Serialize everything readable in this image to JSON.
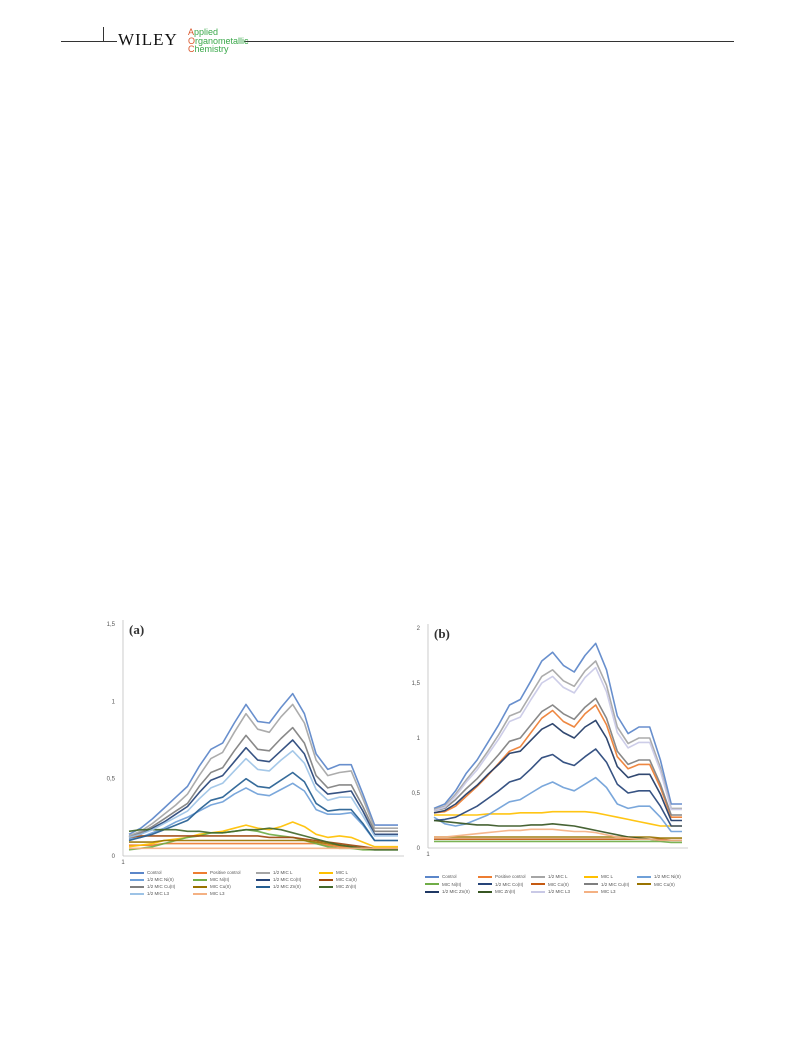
{
  "header": {
    "publisher": "WILEY",
    "journal": {
      "line1": "Applied",
      "line2": "Organometallic",
      "line3": "Chemistry",
      "accent_color": "#d9562b",
      "text_color": "#3aa84a"
    }
  },
  "chart_data": [
    {
      "type": "line",
      "panel_label": "(a)",
      "ylim": [
        0,
        1.5
      ],
      "y_ticks": [
        "0",
        "0,5",
        "1",
        "1,5"
      ],
      "x_ticks": [
        "1"
      ],
      "x": [
        1,
        2,
        3,
        4,
        5,
        6,
        7,
        8,
        9,
        10,
        11,
        12,
        13,
        14,
        15,
        16,
        17,
        18,
        19,
        20,
        21,
        22,
        23,
        24
      ],
      "series": [
        {
          "name": "Control",
          "color": "#5b86c9",
          "values": [
            0.14,
            0.18,
            0.24,
            0.31,
            0.38,
            0.45,
            0.58,
            0.69,
            0.73,
            0.86,
            0.98,
            0.87,
            0.86,
            0.96,
            1.05,
            0.92,
            0.66,
            0.56,
            0.59,
            0.59,
            0.4,
            0.2,
            0.2,
            0.2
          ]
        },
        {
          "name": "Positive control",
          "color": "#ed7d31",
          "values": [
            0.07,
            0.07,
            0.07,
            0.08,
            0.08,
            0.08,
            0.08,
            0.08,
            0.08,
            0.08,
            0.08,
            0.08,
            0.08,
            0.08,
            0.08,
            0.08,
            0.08,
            0.07,
            0.06,
            0.05,
            0.05,
            0.05,
            0.05,
            0.05
          ]
        },
        {
          "name": "1/2 MIC L",
          "color": "#a5a5a5",
          "values": [
            0.13,
            0.16,
            0.21,
            0.27,
            0.33,
            0.4,
            0.52,
            0.63,
            0.67,
            0.8,
            0.92,
            0.82,
            0.8,
            0.9,
            0.98,
            0.86,
            0.62,
            0.52,
            0.54,
            0.55,
            0.37,
            0.18,
            0.18,
            0.18
          ]
        },
        {
          "name": "MIC L",
          "color": "#ffc000",
          "values": [
            0.06,
            0.07,
            0.08,
            0.1,
            0.11,
            0.12,
            0.14,
            0.15,
            0.16,
            0.18,
            0.2,
            0.18,
            0.17,
            0.19,
            0.22,
            0.19,
            0.14,
            0.12,
            0.13,
            0.12,
            0.09,
            0.06,
            0.06,
            0.06
          ]
        },
        {
          "name": "1/2 MIC Ni(II)",
          "color": "#6fa0d8",
          "values": [
            0.11,
            0.12,
            0.15,
            0.18,
            0.22,
            0.25,
            0.29,
            0.33,
            0.35,
            0.4,
            0.44,
            0.4,
            0.39,
            0.43,
            0.47,
            0.42,
            0.3,
            0.27,
            0.27,
            0.28,
            0.2,
            0.1,
            0.1,
            0.1
          ]
        },
        {
          "name": "MIC Ni(II)",
          "color": "#70ad47",
          "values": [
            0.04,
            0.05,
            0.06,
            0.08,
            0.1,
            0.12,
            0.13,
            0.15,
            0.15,
            0.16,
            0.17,
            0.16,
            0.14,
            0.13,
            0.12,
            0.1,
            0.08,
            0.06,
            0.05,
            0.05,
            0.04,
            0.04,
            0.04,
            0.04
          ]
        },
        {
          "name": "1/2 MIC Co(II)",
          "color": "#264478",
          "values": [
            0.12,
            0.14,
            0.18,
            0.22,
            0.27,
            0.32,
            0.41,
            0.49,
            0.52,
            0.61,
            0.7,
            0.62,
            0.61,
            0.68,
            0.75,
            0.66,
            0.47,
            0.4,
            0.41,
            0.42,
            0.29,
            0.14,
            0.14,
            0.14
          ]
        },
        {
          "name": "MIC Co(II)",
          "color": "#9e480e",
          "values": [
            0.12,
            0.13,
            0.13,
            0.13,
            0.13,
            0.13,
            0.13,
            0.13,
            0.13,
            0.13,
            0.13,
            0.13,
            0.12,
            0.12,
            0.12,
            0.11,
            0.1,
            0.09,
            0.08,
            0.07,
            0.06,
            0.05,
            0.05,
            0.05
          ]
        },
        {
          "name": "1/2 MIC Cu(II)",
          "color": "#7f7f7f",
          "values": [
            0.12,
            0.15,
            0.19,
            0.24,
            0.29,
            0.34,
            0.45,
            0.54,
            0.57,
            0.68,
            0.78,
            0.69,
            0.68,
            0.76,
            0.83,
            0.73,
            0.52,
            0.44,
            0.46,
            0.46,
            0.32,
            0.16,
            0.16,
            0.16
          ]
        },
        {
          "name": "MIC Cu(II)",
          "color": "#997300",
          "values": [
            0.09,
            0.09,
            0.09,
            0.1,
            0.1,
            0.1,
            0.1,
            0.1,
            0.1,
            0.1,
            0.1,
            0.1,
            0.1,
            0.1,
            0.1,
            0.1,
            0.09,
            0.08,
            0.07,
            0.06,
            0.05,
            0.05,
            0.05,
            0.05
          ]
        },
        {
          "name": "1/2 MIC Zn(II)",
          "color": "#255e91",
          "values": [
            0.1,
            0.12,
            0.14,
            0.17,
            0.2,
            0.23,
            0.3,
            0.36,
            0.38,
            0.44,
            0.5,
            0.45,
            0.44,
            0.49,
            0.54,
            0.48,
            0.34,
            0.29,
            0.3,
            0.3,
            0.21,
            0.1,
            0.1,
            0.1
          ]
        },
        {
          "name": "MIC Zn(II)",
          "color": "#43682b",
          "values": [
            0.16,
            0.17,
            0.17,
            0.17,
            0.17,
            0.16,
            0.16,
            0.15,
            0.15,
            0.16,
            0.17,
            0.17,
            0.18,
            0.17,
            0.15,
            0.13,
            0.11,
            0.09,
            0.07,
            0.06,
            0.05,
            0.04,
            0.04,
            0.04
          ]
        },
        {
          "name": "1/2 MIC L3",
          "color": "#9dc3e6",
          "values": [
            0.12,
            0.14,
            0.17,
            0.21,
            0.25,
            0.29,
            0.37,
            0.44,
            0.47,
            0.55,
            0.63,
            0.56,
            0.55,
            0.62,
            0.68,
            0.6,
            0.43,
            0.36,
            0.38,
            0.38,
            0.26,
            0.13,
            0.13,
            0.13
          ]
        },
        {
          "name": "MIC L3",
          "color": "#f4b183",
          "values": [
            0.05,
            0.05,
            0.05,
            0.05,
            0.05,
            0.05,
            0.05,
            0.05,
            0.05,
            0.05,
            0.05,
            0.05,
            0.05,
            0.05,
            0.05,
            0.05,
            0.05,
            0.05,
            0.05,
            0.05,
            0.05,
            0.05,
            0.05,
            0.05
          ]
        }
      ]
    },
    {
      "type": "line",
      "panel_label": "(b)",
      "ylim": [
        0,
        2
      ],
      "y_ticks": [
        "0",
        "0,5",
        "1",
        "1,5",
        "2"
      ],
      "x_ticks": [
        "1"
      ],
      "x": [
        1,
        2,
        3,
        4,
        5,
        6,
        7,
        8,
        9,
        10,
        11,
        12,
        13,
        14,
        15,
        16,
        17,
        18,
        19,
        20,
        21,
        22,
        23,
        24
      ],
      "series": [
        {
          "name": "Control",
          "color": "#5b86c9",
          "values": [
            0.36,
            0.4,
            0.52,
            0.68,
            0.8,
            0.96,
            1.12,
            1.3,
            1.35,
            1.52,
            1.7,
            1.78,
            1.66,
            1.6,
            1.75,
            1.86,
            1.62,
            1.2,
            1.04,
            1.1,
            1.1,
            0.8,
            0.4,
            0.4
          ]
        },
        {
          "name": "Positive control",
          "color": "#ed7d31",
          "values": [
            0.32,
            0.33,
            0.38,
            0.47,
            0.56,
            0.66,
            0.77,
            0.88,
            0.92,
            1.05,
            1.18,
            1.25,
            1.15,
            1.1,
            1.22,
            1.3,
            1.12,
            0.83,
            0.72,
            0.76,
            0.76,
            0.55,
            0.28,
            0.28
          ]
        },
        {
          "name": "1/2 MIC L",
          "color": "#a5a5a5",
          "values": [
            0.35,
            0.38,
            0.49,
            0.62,
            0.74,
            0.88,
            1.03,
            1.2,
            1.24,
            1.4,
            1.56,
            1.62,
            1.52,
            1.47,
            1.61,
            1.7,
            1.48,
            1.1,
            0.95,
            1.0,
            1.0,
            0.73,
            0.36,
            0.36
          ]
        },
        {
          "name": "MIC L",
          "color": "#ffc000",
          "values": [
            0.3,
            0.3,
            0.3,
            0.3,
            0.3,
            0.31,
            0.31,
            0.31,
            0.32,
            0.32,
            0.32,
            0.33,
            0.33,
            0.33,
            0.33,
            0.32,
            0.3,
            0.28,
            0.26,
            0.24,
            0.22,
            0.2,
            0.2,
            0.2
          ]
        },
        {
          "name": "1/2 MIC Ni(II)",
          "color": "#6fa0d8",
          "values": [
            0.28,
            0.22,
            0.2,
            0.22,
            0.26,
            0.3,
            0.36,
            0.42,
            0.44,
            0.5,
            0.56,
            0.6,
            0.55,
            0.52,
            0.58,
            0.64,
            0.55,
            0.4,
            0.36,
            0.38,
            0.38,
            0.28,
            0.15,
            0.15
          ]
        },
        {
          "name": "MIC Ni(II)",
          "color": "#70ad47",
          "values": [
            0.06,
            0.06,
            0.06,
            0.06,
            0.06,
            0.06,
            0.06,
            0.06,
            0.06,
            0.06,
            0.06,
            0.06,
            0.06,
            0.06,
            0.06,
            0.06,
            0.06,
            0.06,
            0.06,
            0.06,
            0.06,
            0.06,
            0.05,
            0.05
          ]
        },
        {
          "name": "1/2 MIC Co(II)",
          "color": "#264478",
          "values": [
            0.25,
            0.26,
            0.28,
            0.33,
            0.38,
            0.45,
            0.52,
            0.6,
            0.63,
            0.72,
            0.82,
            0.85,
            0.78,
            0.75,
            0.83,
            0.9,
            0.78,
            0.58,
            0.5,
            0.52,
            0.52,
            0.38,
            0.2,
            0.2
          ]
        },
        {
          "name": "MIC Co(II)",
          "color": "#c55a11",
          "values": [
            0.08,
            0.08,
            0.08,
            0.08,
            0.08,
            0.08,
            0.08,
            0.08,
            0.08,
            0.08,
            0.08,
            0.08,
            0.08,
            0.08,
            0.08,
            0.08,
            0.08,
            0.08,
            0.08,
            0.08,
            0.08,
            0.08,
            0.07,
            0.07
          ]
        },
        {
          "name": "1/2 MIC Cu(II)",
          "color": "#7f7f7f",
          "values": [
            0.34,
            0.36,
            0.44,
            0.54,
            0.63,
            0.74,
            0.85,
            0.97,
            1.0,
            1.12,
            1.24,
            1.3,
            1.22,
            1.17,
            1.28,
            1.36,
            1.18,
            0.88,
            0.76,
            0.8,
            0.8,
            0.58,
            0.3,
            0.3
          ]
        },
        {
          "name": "MIC Cu(II)",
          "color": "#997300",
          "values": [
            0.1,
            0.1,
            0.1,
            0.1,
            0.1,
            0.1,
            0.1,
            0.1,
            0.1,
            0.1,
            0.1,
            0.1,
            0.1,
            0.1,
            0.1,
            0.1,
            0.1,
            0.1,
            0.1,
            0.1,
            0.1,
            0.09,
            0.09,
            0.09
          ]
        },
        {
          "name": "1/2 MIC Zn(II)",
          "color": "#1f3864",
          "values": [
            0.32,
            0.34,
            0.4,
            0.49,
            0.57,
            0.67,
            0.76,
            0.86,
            0.88,
            0.98,
            1.08,
            1.13,
            1.05,
            1.0,
            1.1,
            1.16,
            1.0,
            0.74,
            0.64,
            0.67,
            0.67,
            0.49,
            0.25,
            0.25
          ]
        },
        {
          "name": "MIC Zn(II)",
          "color": "#375623",
          "values": [
            0.25,
            0.24,
            0.23,
            0.22,
            0.21,
            0.21,
            0.2,
            0.2,
            0.2,
            0.21,
            0.21,
            0.22,
            0.21,
            0.2,
            0.18,
            0.16,
            0.14,
            0.12,
            0.1,
            0.09,
            0.08,
            0.07,
            0.07,
            0.07
          ]
        },
        {
          "name": "1/2 MIC L3",
          "color": "#c9c9e6",
          "values": [
            0.34,
            0.37,
            0.47,
            0.6,
            0.71,
            0.85,
            0.99,
            1.15,
            1.19,
            1.35,
            1.5,
            1.56,
            1.46,
            1.41,
            1.55,
            1.64,
            1.42,
            1.05,
            0.91,
            0.96,
            0.96,
            0.7,
            0.35,
            0.35
          ]
        },
        {
          "name": "MIC L3",
          "color": "#f4b183",
          "values": [
            0.1,
            0.1,
            0.11,
            0.12,
            0.13,
            0.14,
            0.15,
            0.16,
            0.16,
            0.17,
            0.17,
            0.17,
            0.16,
            0.15,
            0.15,
            0.14,
            0.12,
            0.1,
            0.09,
            0.08,
            0.08,
            0.07,
            0.07,
            0.07
          ]
        }
      ]
    }
  ]
}
